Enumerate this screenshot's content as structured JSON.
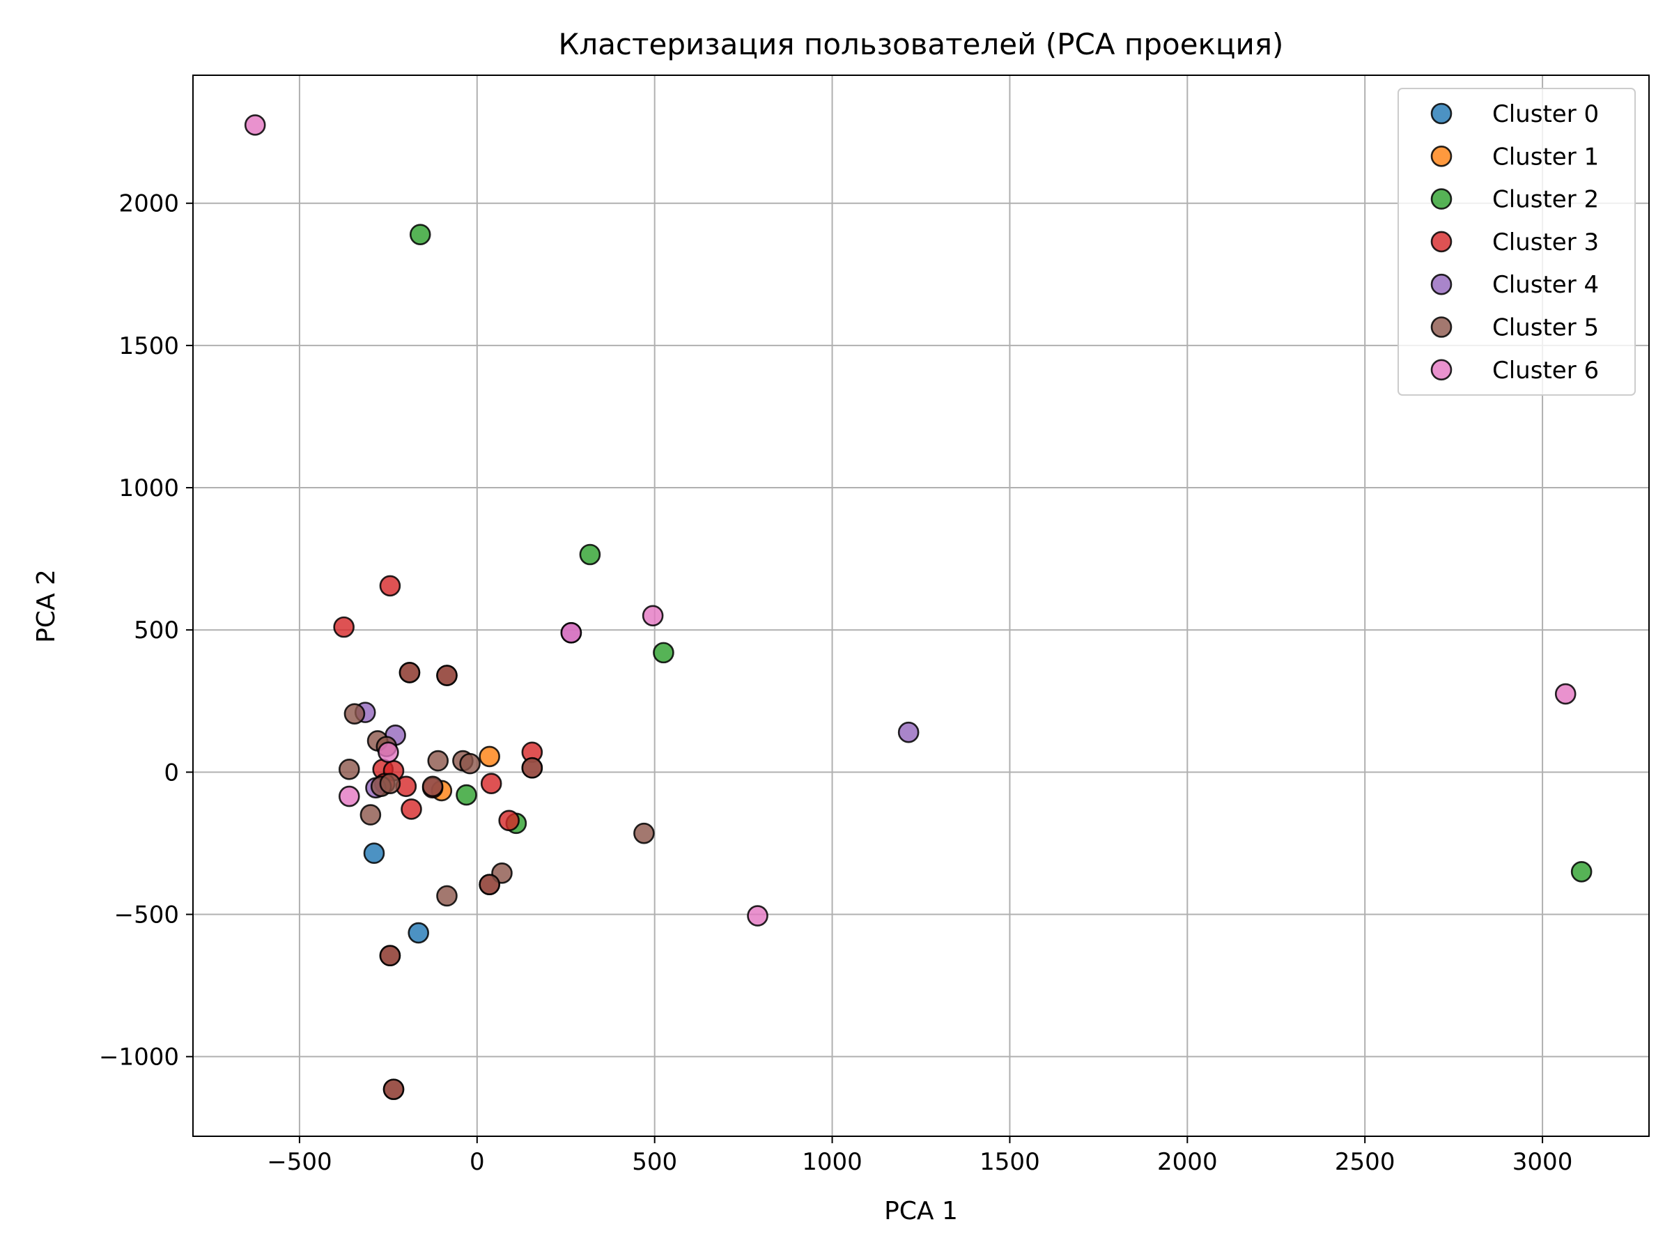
{
  "chart_data": {
    "type": "scatter",
    "title": "Кластеризация пользователей (PCA проекция)",
    "xlabel": "PCA 1",
    "ylabel": "PCA 2",
    "xlim": [
      -800,
      3300
    ],
    "ylim": [
      -1280,
      2450
    ],
    "xticks": [
      -500,
      0,
      500,
      1000,
      1500,
      2000,
      2500,
      3000
    ],
    "yticks": [
      -1000,
      -500,
      0,
      500,
      1000,
      1500,
      2000
    ],
    "xtick_labels": [
      "−500",
      "0",
      "500",
      "1000",
      "1500",
      "2000",
      "2500",
      "3000"
    ],
    "ytick_labels": [
      "−1000",
      "−500",
      "0",
      "500",
      "1000",
      "1500",
      "2000"
    ],
    "grid": true,
    "legend_position": "top-right",
    "series": [
      {
        "name": "Cluster 0",
        "color": "#1f77b4",
        "points": [
          [
            -290,
            -285
          ],
          [
            -165,
            -565
          ]
        ]
      },
      {
        "name": "Cluster 1",
        "color": "#ff7f0e",
        "points": [
          [
            35,
            55
          ],
          [
            -100,
            -65
          ]
        ]
      },
      {
        "name": "Cluster 2",
        "color": "#2ca02c",
        "points": [
          [
            -160,
            1890
          ],
          [
            318,
            765
          ],
          [
            525,
            420
          ],
          [
            -30,
            -80
          ],
          [
            110,
            -180
          ],
          [
            3110,
            -350
          ]
        ]
      },
      {
        "name": "Cluster 3",
        "color": "#d62728",
        "points": [
          [
            -245,
            655
          ],
          [
            -375,
            510
          ],
          [
            -190,
            350
          ],
          [
            -85,
            340
          ],
          [
            155,
            70
          ],
          [
            155,
            15
          ],
          [
            -265,
            10
          ],
          [
            -235,
            5
          ],
          [
            -260,
            -40
          ],
          [
            -200,
            -50
          ],
          [
            -125,
            -55
          ],
          [
            40,
            -40
          ],
          [
            -185,
            -130
          ],
          [
            90,
            -170
          ],
          [
            35,
            -395
          ],
          [
            -245,
            -645
          ],
          [
            -235,
            -1115
          ]
        ]
      },
      {
        "name": "Cluster 4",
        "color": "#9467bd",
        "points": [
          [
            -315,
            210
          ],
          [
            -230,
            130
          ],
          [
            -285,
            -55
          ],
          [
            1215,
            140
          ],
          [
            265,
            490
          ]
        ]
      },
      {
        "name": "Cluster 5",
        "color": "#8c564b",
        "points": [
          [
            -345,
            205
          ],
          [
            -190,
            350
          ],
          [
            -85,
            340
          ],
          [
            -280,
            110
          ],
          [
            -255,
            90
          ],
          [
            -360,
            10
          ],
          [
            -110,
            40
          ],
          [
            -40,
            40
          ],
          [
            -20,
            30
          ],
          [
            -270,
            -50
          ],
          [
            -245,
            -40
          ],
          [
            -125,
            -50
          ],
          [
            -300,
            -150
          ],
          [
            155,
            15
          ],
          [
            470,
            -215
          ],
          [
            70,
            -355
          ],
          [
            35,
            -395
          ],
          [
            -85,
            -435
          ],
          [
            -245,
            -645
          ],
          [
            -235,
            -1115
          ]
        ]
      },
      {
        "name": "Cluster 6",
        "color": "#e377c2",
        "points": [
          [
            -625,
            2275
          ],
          [
            495,
            550
          ],
          [
            265,
            490
          ],
          [
            -250,
            70
          ],
          [
            -360,
            -85
          ],
          [
            790,
            -505
          ],
          [
            3065,
            275
          ]
        ]
      }
    ]
  }
}
